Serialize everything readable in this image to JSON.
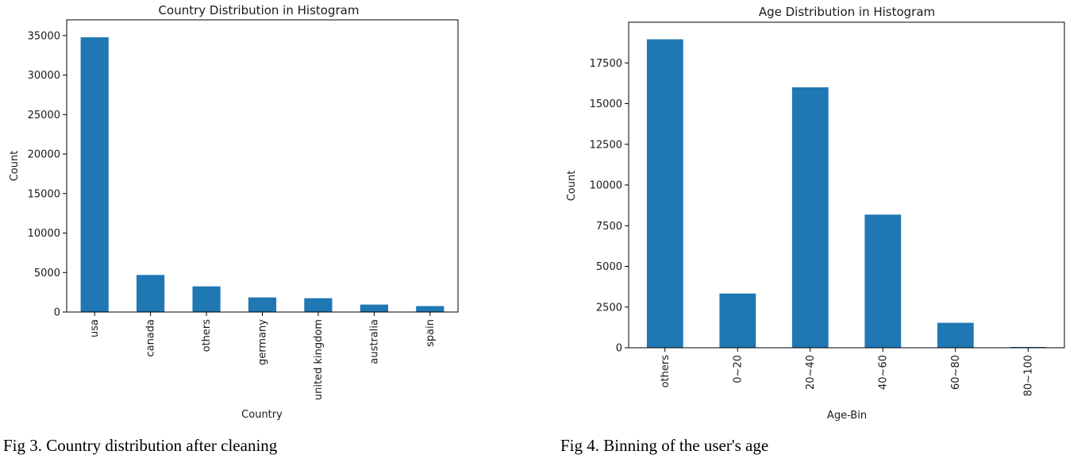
{
  "colors": {
    "bar": "#1f77b4",
    "axis": "#000000",
    "text": "#1a1a1a"
  },
  "figures": [
    {
      "caption": "Fig 3. Country distribution after cleaning"
    },
    {
      "caption": "Fig 4. Binning of the user's age"
    }
  ],
  "chart_data": [
    {
      "type": "bar",
      "title": "Country Distribution in Histogram",
      "xlabel": "Country",
      "ylabel": "Count",
      "categories": [
        "usa",
        "canada",
        "others",
        "germany",
        "united kingdom",
        "australia",
        "spain"
      ],
      "values": [
        34800,
        4700,
        3250,
        1850,
        1750,
        950,
        750
      ],
      "ylim": [
        0,
        37000
      ],
      "yticks": [
        0,
        5000,
        10000,
        15000,
        20000,
        25000,
        30000,
        35000
      ],
      "grid": false,
      "legend": "none"
    },
    {
      "type": "bar",
      "title": "Age Distribution in Histogram",
      "xlabel": "Age-Bin",
      "ylabel": "Count",
      "categories": [
        "others",
        "0~20",
        "20~40",
        "40~60",
        "60~80",
        "80~100"
      ],
      "values": [
        18950,
        3330,
        16000,
        8180,
        1530,
        50
      ],
      "ylim": [
        0,
        20000
      ],
      "yticks": [
        0,
        2500,
        5000,
        7500,
        10000,
        12500,
        15000,
        17500
      ],
      "grid": false,
      "legend": "none"
    }
  ]
}
